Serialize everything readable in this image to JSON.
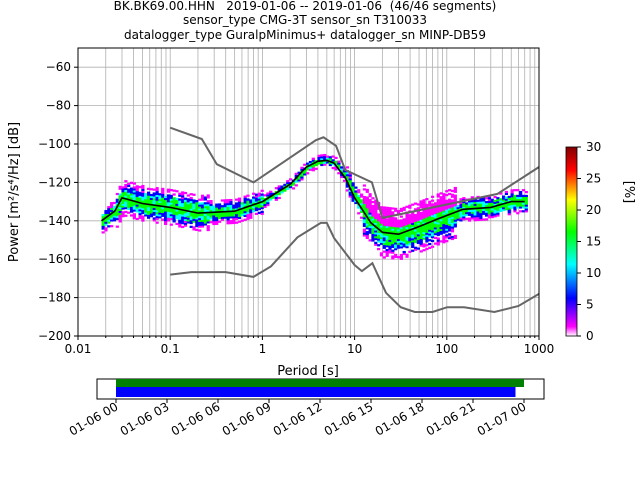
{
  "title_lines": [
    "BK.BK69.00.HHN   2019-01-06 -- 2019-01-06  (46/46 segments)",
    "sensor_type CMG-3T sensor_sn T310033",
    "datalogger_type GuralpMinimus+ datalogger_sn MINP-DB59"
  ],
  "colors": {
    "mean_line": "#000000",
    "noise_models": "#666666",
    "grid": "#b0b0b0",
    "timeline_data": "#0000ff",
    "timeline_used": "#008000"
  },
  "chart_data": {
    "type": "heatmap",
    "xlabel": "Period [s]",
    "ylabel": "Power [m²/s⁴/Hz] [dB]",
    "xscale": "log",
    "xlim": [
      0.01,
      1000
    ],
    "ylim": [
      -200,
      -50
    ],
    "xticks": [
      0.01,
      0.1,
      1,
      10,
      100,
      1000
    ],
    "xtick_labels": [
      "0.01",
      "0.1",
      "1",
      "10",
      "100",
      "1000"
    ],
    "yticks": [
      -200,
      -180,
      -160,
      -140,
      -120,
      -100,
      -80,
      -60
    ],
    "ytick_labels": [
      "−200",
      "−180",
      "−160",
      "−140",
      "−120",
      "−100",
      "−80",
      "−60"
    ],
    "grid": true,
    "colorbar": {
      "label": "[%]",
      "range": [
        0,
        30
      ],
      "ticks": [
        0,
        5,
        10,
        15,
        20,
        25,
        30
      ],
      "tick_labels": [
        "0",
        "5",
        "10",
        "15",
        "20",
        "25",
        "30"
      ],
      "colormap": [
        "#ffffff",
        "#ff00ff",
        "#0000ff",
        "#00ffff",
        "#00ff00",
        "#ffff00",
        "#ff0000",
        "#800000"
      ]
    },
    "mean_psd": [
      [
        0.018,
        -140
      ],
      [
        0.025,
        -135
      ],
      [
        0.03,
        -128
      ],
      [
        0.05,
        -131
      ],
      [
        0.1,
        -133
      ],
      [
        0.2,
        -136
      ],
      [
        0.5,
        -135
      ],
      [
        1,
        -130
      ],
      [
        2,
        -121
      ],
      [
        3,
        -112
      ],
      [
        4,
        -109
      ],
      [
        5,
        -108.5
      ],
      [
        6,
        -110
      ],
      [
        8,
        -118
      ],
      [
        10,
        -128
      ],
      [
        15,
        -141
      ],
      [
        20,
        -146
      ],
      [
        30,
        -147
      ],
      [
        50,
        -143
      ],
      [
        80,
        -139
      ],
      [
        150,
        -134
      ],
      [
        300,
        -133
      ],
      [
        500,
        -130
      ],
      [
        700,
        -130
      ]
    ],
    "low_noise_model": [
      [
        0.1,
        -168
      ],
      [
        0.17,
        -166.7
      ],
      [
        0.4,
        -166.7
      ],
      [
        0.8,
        -169.2
      ],
      [
        1.24,
        -163.7
      ],
      [
        2.4,
        -148.6
      ],
      [
        4.3,
        -141.1
      ],
      [
        5,
        -141.1
      ],
      [
        6,
        -149
      ],
      [
        10,
        -163
      ],
      [
        12,
        -166.2
      ],
      [
        15.6,
        -162.1
      ],
      [
        21.9,
        -177.5
      ],
      [
        31.6,
        -185
      ],
      [
        45,
        -187.5
      ],
      [
        70,
        -187.5
      ],
      [
        101,
        -185
      ],
      [
        154,
        -185
      ],
      [
        328,
        -187.5
      ],
      [
        600,
        -184.4
      ],
      [
        1000,
        -178
      ]
    ],
    "high_noise_model": [
      [
        0.1,
        -91.5
      ],
      [
        0.22,
        -97.4
      ],
      [
        0.32,
        -110.5
      ],
      [
        0.8,
        -120
      ],
      [
        3.8,
        -98
      ],
      [
        4.6,
        -96.5
      ],
      [
        6.3,
        -101
      ],
      [
        7.9,
        -113.5
      ],
      [
        15.4,
        -120
      ],
      [
        20,
        -138.5
      ],
      [
        354.8,
        -126
      ],
      [
        1000,
        -112
      ]
    ],
    "timeline": {
      "tick_labels": [
        "01-06 00",
        "01-06 03",
        "01-06 06",
        "01-06 09",
        "01-06 12",
        "01-06 15",
        "01-06 18",
        "01-06 21",
        "01-07 00"
      ],
      "hours_total": 24,
      "used_segments_hours": [
        0,
        24
      ],
      "data_coverage_hours": [
        0,
        23.5
      ]
    }
  }
}
